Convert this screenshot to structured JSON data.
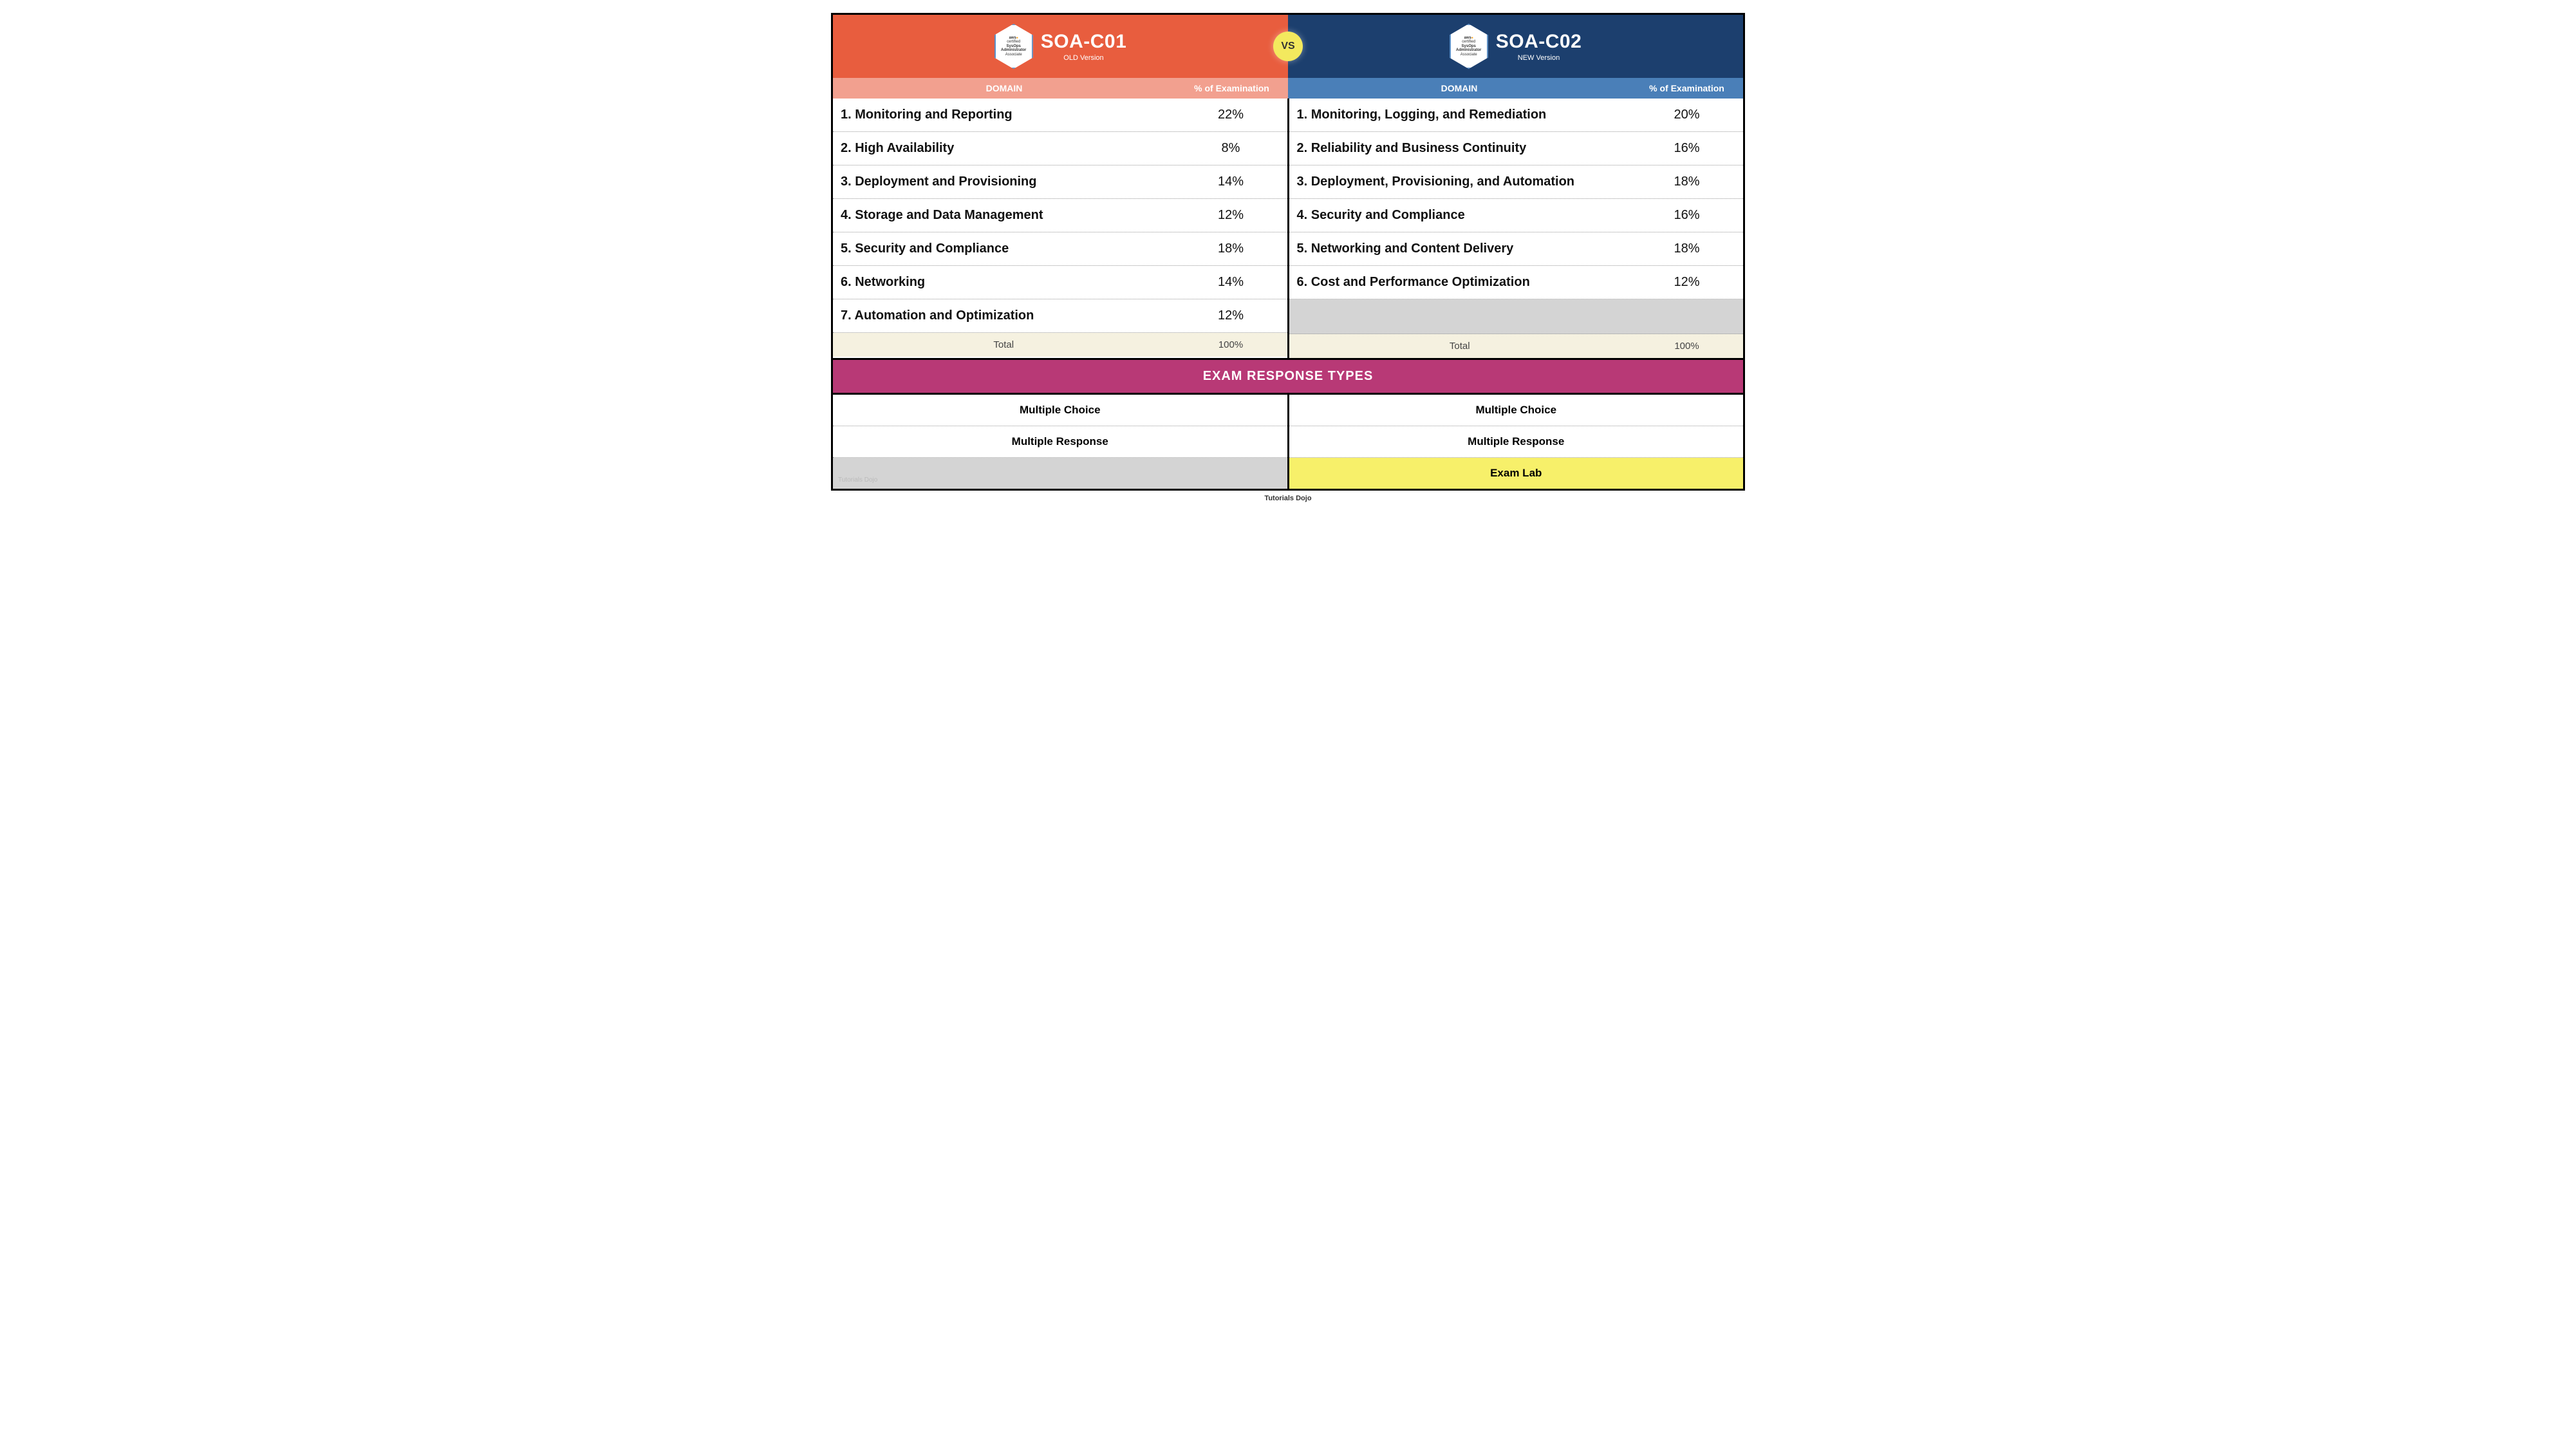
{
  "colors": {
    "header_left_bg": "#e85d3e",
    "header_right_bg": "#1c3f6e",
    "subheader_left_bg": "#f2a08f",
    "subheader_right_bg": "#4a7fb8",
    "vs_bg": "#f3e95e",
    "total_bg": "#f5f1e0",
    "section_bg": "#b83976",
    "empty_bg": "#d4d4d4",
    "highlight_bg": "#f7f06a",
    "border": "#000000"
  },
  "badge": {
    "line1": "aws",
    "line1b": "certified",
    "line2": "SysOps",
    "line3": "Administrator",
    "line4": "Associate"
  },
  "left": {
    "title": "SOA-C01",
    "subtitle": "OLD Version",
    "header_domain": "DOMAIN",
    "header_pct": "% of Examination",
    "rows": [
      {
        "domain": "1. Monitoring and Reporting",
        "pct": "22%"
      },
      {
        "domain": "2. High Availability",
        "pct": "8%"
      },
      {
        "domain": "3. Deployment and Provisioning",
        "pct": "14%"
      },
      {
        "domain": "4. Storage and Data Management",
        "pct": "12%"
      },
      {
        "domain": "5. Security and Compliance",
        "pct": "18%"
      },
      {
        "domain": "6. Networking",
        "pct": "14%"
      },
      {
        "domain": "7. Automation and Optimization",
        "pct": "12%"
      }
    ],
    "total_label": "Total",
    "total_pct": "100%",
    "responses": [
      {
        "label": "Multiple Choice",
        "highlight": false
      },
      {
        "label": "Multiple Response",
        "highlight": false
      },
      {
        "label": "",
        "highlight": false,
        "empty": true
      }
    ]
  },
  "right": {
    "title": "SOA-C02",
    "subtitle": "NEW Version",
    "header_domain": "DOMAIN",
    "header_pct": "% of Examination",
    "rows": [
      {
        "domain": "1. Monitoring, Logging, and Remediation",
        "pct": "20%"
      },
      {
        "domain": "2. Reliability and Business Continuity",
        "pct": "16%"
      },
      {
        "domain": "3. Deployment, Provisioning, and Automation",
        "pct": "18%"
      },
      {
        "domain": "4. Security and Compliance",
        "pct": "16%"
      },
      {
        "domain": "5. Networking and Content Delivery",
        "pct": "18%"
      },
      {
        "domain": "6. Cost and Performance Optimization",
        "pct": "12%"
      }
    ],
    "total_label": "Total",
    "total_pct": "100%",
    "responses": [
      {
        "label": "Multiple Choice",
        "highlight": false
      },
      {
        "label": "Multiple Response",
        "highlight": false
      },
      {
        "label": "Exam Lab",
        "highlight": true
      }
    ]
  },
  "vs": "VS",
  "section_title": "EXAM RESPONSE TYPES",
  "watermark": "Tutorials Dojo",
  "footer": "Tutorials Dojo"
}
